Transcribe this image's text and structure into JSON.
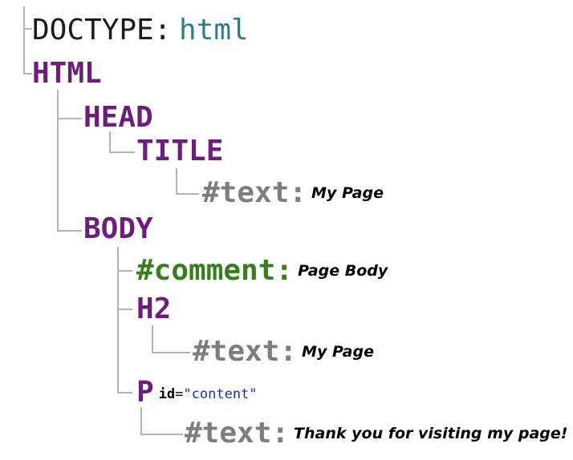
{
  "doctype": {
    "key": "DOCTYPE:",
    "value": "html"
  },
  "html": {
    "tag": "HTML"
  },
  "head": {
    "tag": "HEAD"
  },
  "title": {
    "tag": "TITLE",
    "text_node": "#text:",
    "text_value": "My Page"
  },
  "body": {
    "tag": "BODY"
  },
  "comment": {
    "node": "#comment:",
    "value": "Page Body"
  },
  "h2": {
    "tag": "H2",
    "text_node": "#text:",
    "text_value": "My Page"
  },
  "p": {
    "tag": "P",
    "attr_name": "id",
    "attr_eq": "=",
    "attr_value": "\"content\"",
    "text_node": "#text:",
    "text_value": "Thank you for visiting my page!"
  },
  "colors": {
    "element": "#6b1e7a",
    "doctype_value": "#2f7e87",
    "text_node": "#7d7d7d",
    "comment_node": "#3a7d1e",
    "attr_value": "#1f2fa0",
    "connector": "#b3b3b3"
  }
}
